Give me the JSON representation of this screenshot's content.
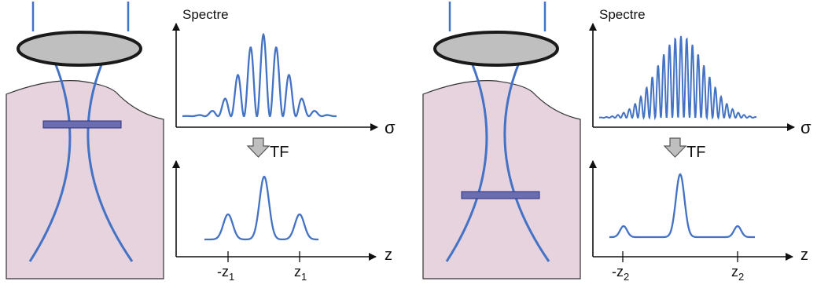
{
  "panels": [
    {
      "spectrum_label": "Spectre",
      "spectrum_axis": "σ",
      "transform_label": "TF",
      "signal_axis": "z",
      "tick_left": {
        "base": "-z",
        "sub": "1"
      },
      "tick_right": {
        "base": "z",
        "sub": "1"
      }
    },
    {
      "spectrum_label": "Spectre",
      "spectrum_axis": "σ",
      "transform_label": "TF",
      "signal_axis": "z",
      "tick_left": {
        "base": "-z",
        "sub": "2"
      },
      "tick_right": {
        "base": "z",
        "sub": "2"
      }
    }
  ],
  "colors": {
    "beam": "#4472c4",
    "curve": "#4472c4",
    "lens_fill": "#bfbfbf",
    "lens_stroke": "#1a1a1a",
    "sample_fill": "#e6d3dd",
    "sample_stroke": "#333333",
    "slab_fill": "#6a6db0",
    "slab_stroke": "#2f3280",
    "arrow_fill": "#bfbfbf",
    "arrow_stroke": "#555555",
    "axis": "#111111"
  }
}
